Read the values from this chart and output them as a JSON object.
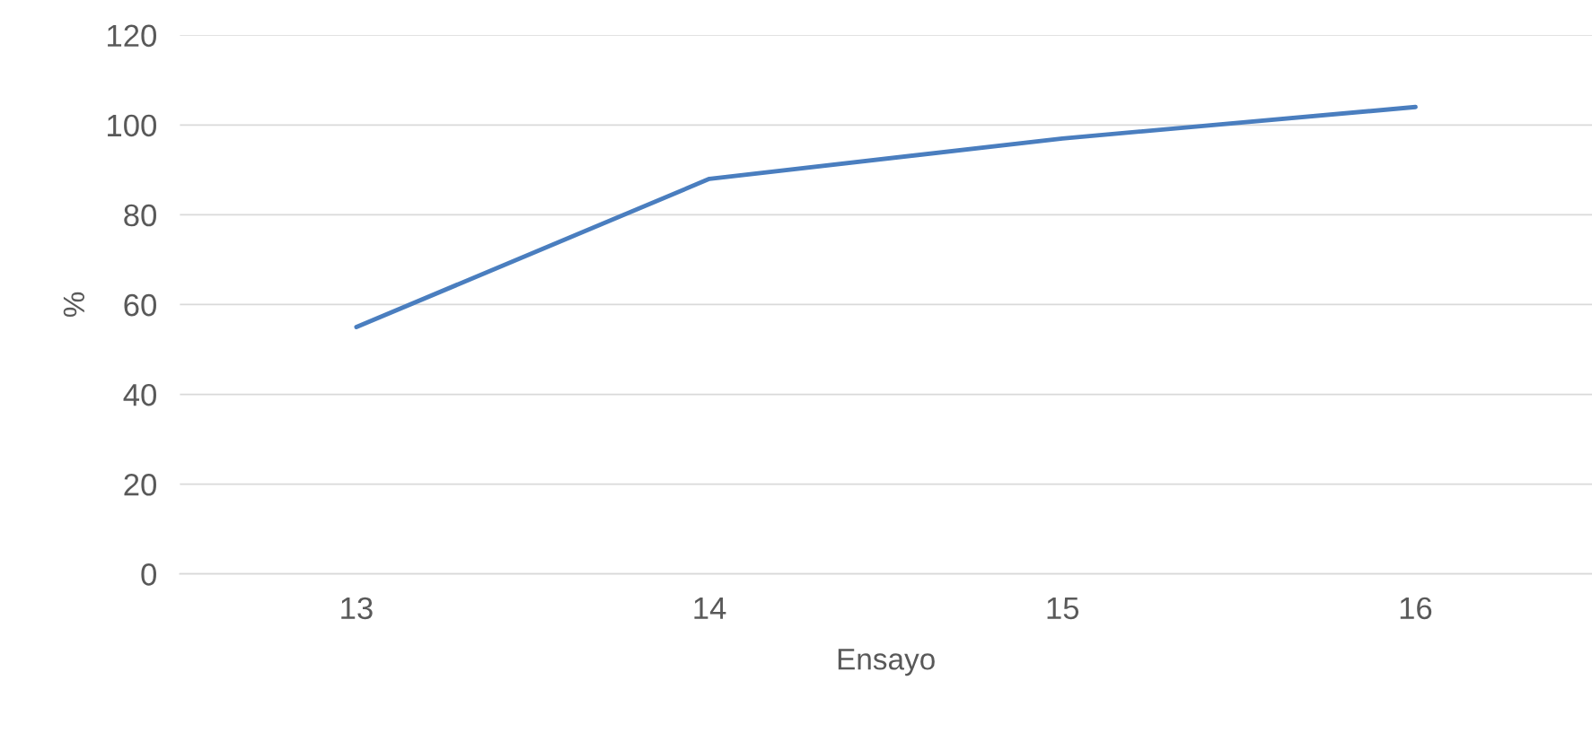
{
  "chart_data": {
    "type": "line",
    "xlabel": "Ensayo",
    "ylabel": "%",
    "categories": [
      "13",
      "14",
      "15",
      "16"
    ],
    "series": [
      {
        "color": "#4a7ebf",
        "values": [
          55,
          88,
          97,
          104
        ]
      }
    ],
    "ylim": [
      0,
      120
    ],
    "yticks": [
      0,
      20,
      40,
      60,
      80,
      100,
      120
    ],
    "grid": "y",
    "legend": false,
    "marker": "none",
    "line_style": "solid"
  }
}
